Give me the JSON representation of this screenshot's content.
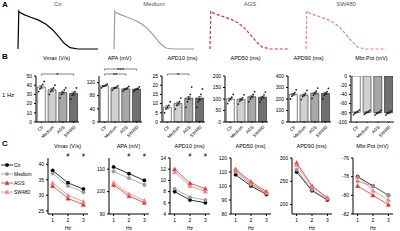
{
  "panel_labels": [
    "A",
    "B",
    "C"
  ],
  "row_label": "1 Hz",
  "chart_data": [
    {
      "type": "line",
      "title": "Ctr",
      "tick_labels": false,
      "color": "#000000",
      "line_style": "solid",
      "x": [
        0,
        4,
        10,
        30,
        60,
        100,
        140,
        170,
        200,
        230,
        260,
        300,
        400
      ],
      "values": [
        -80,
        35,
        30,
        24,
        17,
        8,
        -5,
        -20,
        -40,
        -62,
        -76,
        -80,
        -80
      ]
    },
    {
      "type": "line",
      "title": "Medium",
      "tick_labels": false,
      "color": "#9e9e9e",
      "line_style": "solid",
      "x": [
        0,
        4,
        10,
        30,
        60,
        100,
        140,
        170,
        200,
        230,
        260,
        300,
        400
      ],
      "values": [
        -80,
        33,
        28,
        23,
        16,
        7,
        -6,
        -21,
        -41,
        -63,
        -77,
        -80,
        -80
      ]
    },
    {
      "type": "line",
      "title": "AGS",
      "tick_labels": false,
      "color": "#e0302e",
      "line_style": "dashed",
      "x": [
        0,
        4,
        10,
        30,
        60,
        100,
        140,
        170,
        200,
        230,
        260,
        300,
        400
      ],
      "values": [
        -80,
        30,
        26,
        21,
        15,
        7,
        -4,
        -18,
        -37,
        -58,
        -74,
        -80,
        -80
      ]
    },
    {
      "type": "line",
      "title": "SW480",
      "tick_labels": false,
      "color": "#f08080",
      "line_style": "dashed",
      "x": [
        0,
        4,
        10,
        30,
        60,
        100,
        140,
        170,
        200,
        230,
        260,
        300,
        400
      ],
      "values": [
        -80,
        30,
        26,
        21,
        15,
        7,
        -4,
        -18,
        -38,
        -59,
        -75,
        -80,
        -80
      ]
    },
    {
      "type": "bar",
      "title": "Vmax (V/s)",
      "categories": [
        "Ctr",
        "Medium",
        "AGS",
        "SW480"
      ],
      "colors": [
        "#ffffff",
        "#d0d0d0",
        "#a8a8a8",
        "#707070"
      ],
      "values": [
        38,
        35,
        32,
        31
      ],
      "errors": [
        1.5,
        1.5,
        1.5,
        1.5
      ],
      "points": [
        [
          33,
          36,
          38,
          41,
          44
        ],
        [
          30,
          33,
          35,
          37,
          40
        ],
        [
          26,
          30,
          32,
          35,
          37
        ],
        [
          25,
          29,
          31,
          33,
          37
        ]
      ],
      "ylim": [
        0,
        50
      ],
      "yticks": [
        0,
        10,
        20,
        30,
        40,
        50
      ],
      "annotations": [
        {
          "text": "*",
          "from": "Ctr",
          "to": "SW480"
        }
      ]
    },
    {
      "type": "bar",
      "title": "APA (mV)",
      "categories": [
        "Ctr",
        "Medium",
        "AGS",
        "SW480"
      ],
      "colors": [
        "#ffffff",
        "#d0d0d0",
        "#a8a8a8",
        "#707070"
      ],
      "values": [
        110,
        104,
        101,
        100
      ],
      "errors": [
        1.5,
        1.5,
        1.5,
        1.5
      ],
      "points": [
        [
          104,
          108,
          110,
          112,
          115
        ],
        [
          97,
          102,
          104,
          107,
          110
        ],
        [
          94,
          98,
          101,
          104,
          108
        ],
        [
          93,
          97,
          100,
          103,
          107
        ]
      ],
      "ylim": [
        0,
        140
      ],
      "yticks": [
        0,
        40,
        80,
        120
      ],
      "annotations": [
        {
          "text": "**",
          "from": "Ctr",
          "to": "AGS"
        },
        {
          "text": "***",
          "from": "Ctr",
          "to": "SW480"
        }
      ]
    },
    {
      "type": "bar",
      "title": "APD10 (ms)",
      "categories": [
        "Ctr",
        "Medium",
        "AGS",
        "SW480"
      ],
      "colors": [
        "#ffffff",
        "#d0d0d0",
        "#a8a8a8",
        "#707070"
      ],
      "values": [
        8,
        10,
        13,
        13
      ],
      "errors": [
        0.8,
        0.8,
        0.8,
        0.8
      ],
      "points": [
        [
          5,
          7,
          8,
          9,
          11
        ],
        [
          7,
          9,
          10,
          11,
          13
        ],
        [
          8,
          11,
          13,
          15,
          19
        ],
        [
          8,
          11,
          12,
          15,
          18
        ]
      ],
      "ylim": [
        0,
        25
      ],
      "yticks": [
        0,
        5,
        10,
        15,
        20,
        25
      ],
      "annotations": [
        {
          "text": "*",
          "from": "Ctr",
          "to": "AGS"
        }
      ]
    },
    {
      "type": "bar",
      "title": "APD50 (ms)",
      "categories": [
        "Ctr",
        "Medium",
        "AGS",
        "SW480"
      ],
      "colors": [
        "#ffffff",
        "#d0d0d0",
        "#a8a8a8",
        "#707070"
      ],
      "values": [
        100,
        98,
        110,
        108
      ],
      "errors": [
        4,
        4,
        4,
        4
      ],
      "points": [
        [
          80,
          92,
          100,
          108,
          120
        ],
        [
          78,
          90,
          98,
          105,
          118
        ],
        [
          88,
          100,
          110,
          120,
          132
        ],
        [
          86,
          98,
          108,
          118,
          130
        ]
      ],
      "ylim": [
        0,
        200
      ],
      "yticks": [
        0,
        50,
        100,
        150,
        200
      ]
    },
    {
      "type": "bar",
      "title": "APD90 (ms)",
      "categories": [
        "Ctr",
        "Medium",
        "AGS",
        "SW480"
      ],
      "colors": [
        "#ffffff",
        "#d0d0d0",
        "#a8a8a8",
        "#707070"
      ],
      "values": [
        240,
        235,
        250,
        248
      ],
      "errors": [
        8,
        8,
        8,
        8
      ],
      "points": [
        [
          200,
          225,
          240,
          255,
          280
        ],
        [
          195,
          220,
          235,
          250,
          275
        ],
        [
          205,
          232,
          250,
          268,
          295
        ],
        [
          200,
          230,
          248,
          265,
          292
        ]
      ],
      "ylim": [
        0,
        400
      ],
      "yticks": [
        0,
        100,
        200,
        300,
        400
      ]
    },
    {
      "type": "bar",
      "title": "Mbr.Pot (mV)",
      "categories": [
        "Ctr",
        "Medium",
        "AGS",
        "SW480"
      ],
      "colors": [
        "#ffffff",
        "#d0d0d0",
        "#a8a8a8",
        "#707070"
      ],
      "values": [
        -79,
        -79,
        -80,
        -80
      ],
      "errors": [
        1,
        1,
        1,
        1
      ],
      "points": [
        [
          -84,
          -81,
          -79,
          -77,
          -74
        ],
        [
          -83,
          -81,
          -79,
          -77,
          -75
        ],
        [
          -85,
          -82,
          -80,
          -78,
          -75
        ],
        [
          -85,
          -82,
          -80,
          -78,
          -76
        ]
      ],
      "ylim": [
        -100,
        0
      ],
      "yticks": [
        -100,
        -80,
        -60,
        -40,
        -20,
        0
      ]
    },
    {
      "type": "line",
      "title": "Vmax (V/s)",
      "legend": "left",
      "xlabel": "Hz",
      "x": [
        1,
        2,
        3
      ],
      "xlim": [
        0.7,
        3.3
      ],
      "xticks": [
        1,
        2,
        3
      ],
      "ylim": [
        24,
        42
      ],
      "yticks": [
        25,
        30,
        35,
        40
      ],
      "annotations": [
        {
          "text": "#",
          "x": 2
        },
        {
          "text": "#",
          "x": 3
        }
      ],
      "series": [
        {
          "name": "Ctr",
          "color": "#000000",
          "marker": "circle",
          "values": [
            38,
            34,
            32
          ]
        },
        {
          "name": "Medium",
          "color": "#999999",
          "marker": "circle",
          "values": [
            37,
            33,
            31
          ]
        },
        {
          "name": "AGS",
          "color": "#e0302e",
          "marker": "triangle",
          "values": [
            33,
            29,
            27
          ]
        },
        {
          "name": "SW480",
          "color": "#f08080",
          "marker": "triangle",
          "values": [
            34,
            30,
            28
          ]
        }
      ]
    },
    {
      "type": "line",
      "title": "APA (mV)",
      "xlabel": "Hz",
      "x": [
        1,
        2,
        3
      ],
      "xlim": [
        0.7,
        3.3
      ],
      "xticks": [
        1,
        2,
        3
      ],
      "ylim": [
        90,
        115
      ],
      "yticks": [
        90,
        100,
        110
      ],
      "annotations": [
        {
          "text": "#",
          "x": 2
        },
        {
          "text": "#",
          "x": 3
        }
      ],
      "series": [
        {
          "name": "Ctr",
          "color": "#000000",
          "marker": "circle",
          "values": [
            111,
            108,
            105
          ]
        },
        {
          "name": "Medium",
          "color": "#999999",
          "marker": "circle",
          "values": [
            109,
            106,
            103
          ]
        },
        {
          "name": "AGS",
          "color": "#e0302e",
          "marker": "triangle",
          "values": [
            103,
            98,
            95
          ]
        },
        {
          "name": "SW480",
          "color": "#f08080",
          "marker": "triangle",
          "values": [
            104,
            99,
            96
          ]
        }
      ]
    },
    {
      "type": "line",
      "title": "APD10 (ms)",
      "xlabel": "Hz",
      "x": [
        1,
        2,
        3
      ],
      "xlim": [
        0.7,
        3.3
      ],
      "xticks": [
        1,
        2,
        3
      ],
      "ylim": [
        4,
        14
      ],
      "yticks": [
        4,
        6,
        8,
        10,
        12,
        14
      ],
      "annotations": [
        {
          "text": "#",
          "x": 2
        },
        {
          "text": "#",
          "x": 3
        }
      ],
      "series": [
        {
          "name": "Ctr",
          "color": "#000000",
          "marker": "circle",
          "values": [
            8,
            6.5,
            6
          ]
        },
        {
          "name": "Medium",
          "color": "#999999",
          "marker": "circle",
          "values": [
            8.5,
            7,
            6.5
          ]
        },
        {
          "name": "AGS",
          "color": "#e0302e",
          "marker": "triangle",
          "values": [
            12,
            9.5,
            8.5
          ]
        },
        {
          "name": "SW480",
          "color": "#f08080",
          "marker": "triangle",
          "values": [
            11.5,
            9,
            8
          ]
        }
      ]
    },
    {
      "type": "line",
      "title": "APD50 (ms)",
      "xlabel": "Hz",
      "x": [
        1,
        2,
        3
      ],
      "xlim": [
        0.7,
        3.3
      ],
      "xticks": [
        1,
        2,
        3
      ],
      "ylim": [
        80,
        120
      ],
      "yticks": [
        80,
        90,
        100,
        110,
        120
      ],
      "series": [
        {
          "name": "Ctr",
          "color": "#000000",
          "marker": "circle",
          "values": [
            108,
            100,
            94
          ]
        },
        {
          "name": "Medium",
          "color": "#999999",
          "marker": "circle",
          "values": [
            110,
            101,
            95
          ]
        },
        {
          "name": "AGS",
          "color": "#e0302e",
          "marker": "triangle",
          "values": [
            112,
            103,
            96
          ]
        },
        {
          "name": "SW480",
          "color": "#f08080",
          "marker": "triangle",
          "values": [
            111,
            102,
            95
          ]
        }
      ]
    },
    {
      "type": "line",
      "title": "APD90 (ms)",
      "xlabel": "Hz",
      "x": [
        1,
        2,
        3
      ],
      "xlim": [
        0.7,
        3.3
      ],
      "xticks": [
        1,
        2,
        3
      ],
      "ylim": [
        180,
        300
      ],
      "yticks": [
        200,
        250,
        300
      ],
      "series": [
        {
          "name": "Ctr",
          "color": "#000000",
          "marker": "circle",
          "values": [
            270,
            230,
            210
          ]
        },
        {
          "name": "Medium",
          "color": "#999999",
          "marker": "circle",
          "values": [
            275,
            232,
            212
          ]
        },
        {
          "name": "AGS",
          "color": "#e0302e",
          "marker": "triangle",
          "values": [
            290,
            240,
            215
          ]
        },
        {
          "name": "SW480",
          "color": "#f08080",
          "marker": "triangle",
          "values": [
            285,
            238,
            214
          ]
        }
      ]
    },
    {
      "type": "line",
      "title": "Mbr.Pot (mV)",
      "xlabel": "Hz",
      "x": [
        1,
        2,
        3
      ],
      "xlim": [
        0.7,
        3.3
      ],
      "xticks": [
        1,
        2,
        3
      ],
      "ylim": [
        -82,
        -76
      ],
      "yticks": [
        -82,
        -80,
        -78,
        -76
      ],
      "series": [
        {
          "name": "Ctr",
          "color": "#000000",
          "marker": "circle",
          "values": [
            -78,
            -79,
            -80
          ]
        },
        {
          "name": "Medium",
          "color": "#999999",
          "marker": "circle",
          "values": [
            -78.5,
            -79,
            -80
          ]
        },
        {
          "name": "AGS",
          "color": "#e0302e",
          "marker": "triangle",
          "values": [
            -79,
            -80,
            -81
          ]
        },
        {
          "name": "SW480",
          "color": "#f08080",
          "marker": "triangle",
          "values": [
            -78,
            -79.5,
            -80.5
          ]
        }
      ]
    }
  ]
}
